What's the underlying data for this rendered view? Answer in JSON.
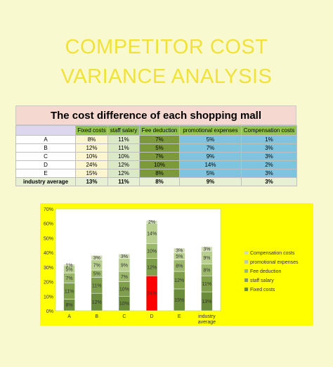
{
  "title": {
    "line1": "COMPETITOR COST",
    "line2": "VARIANCE ANALYSIS"
  },
  "table": {
    "heading": "The cost difference of each shopping mall",
    "columns": [
      "Fixed costs",
      "staff salary",
      "Fee deduction",
      "promotional expenses",
      "Compensation costs"
    ],
    "rows": [
      {
        "label": "A",
        "values": [
          "8%",
          "11%",
          "7%",
          "5%",
          "1%"
        ]
      },
      {
        "label": "B",
        "values": [
          "12%",
          "11%",
          "5%",
          "7%",
          "3%"
        ]
      },
      {
        "label": "C",
        "values": [
          "10%",
          "10%",
          "7%",
          "9%",
          "3%"
        ]
      },
      {
        "label": "D",
        "values": [
          "24%",
          "12%",
          "10%",
          "14%",
          "2%"
        ]
      },
      {
        "label": "E",
        "values": [
          "15%",
          "12%",
          "8%",
          "5%",
          "3%"
        ]
      },
      {
        "label": "industry average",
        "values": [
          "13%",
          "11%",
          "8%",
          "9%",
          "3%"
        ]
      }
    ],
    "colors": {
      "header": [
        "#93c452",
        "#93c452",
        "#93c452",
        "#93c452",
        "#93c452"
      ],
      "body": [
        "#fbf6ce",
        "#dbe9c7",
        "#7d9a3a",
        "#7fc4df",
        "#7fc4df"
      ]
    }
  },
  "chart_data": {
    "type": "bar",
    "stacked": true,
    "categories": [
      "A",
      "B",
      "C",
      "D",
      "E",
      "industry average"
    ],
    "series": [
      {
        "name": "Fixed costs",
        "values": [
          8,
          12,
          10,
          24,
          15,
          13
        ],
        "color": "#6b8c3a"
      },
      {
        "name": "staff salary",
        "values": [
          11,
          11,
          10,
          12,
          12,
          11
        ],
        "color": "#7f9f4a"
      },
      {
        "name": "Fee deduction",
        "values": [
          7,
          5,
          7,
          10,
          8,
          8
        ],
        "color": "#9bb86a"
      },
      {
        "name": "promotional expenses",
        "values": [
          5,
          7,
          9,
          14,
          5,
          9
        ],
        "color": "#b8cf8f"
      },
      {
        "name": "Compensation costs",
        "values": [
          1,
          3,
          3,
          2,
          3,
          3
        ],
        "color": "#cfdcb1"
      }
    ],
    "highlight": {
      "category": "D",
      "series": "Fixed costs",
      "color": "#ff0000"
    },
    "ylim": [
      0,
      70
    ],
    "yticks": [
      "0%",
      "10%",
      "20%",
      "30%",
      "40%",
      "50%",
      "60%",
      "70%"
    ],
    "legend_position": "right",
    "grid": false,
    "background": "#ffff00"
  }
}
